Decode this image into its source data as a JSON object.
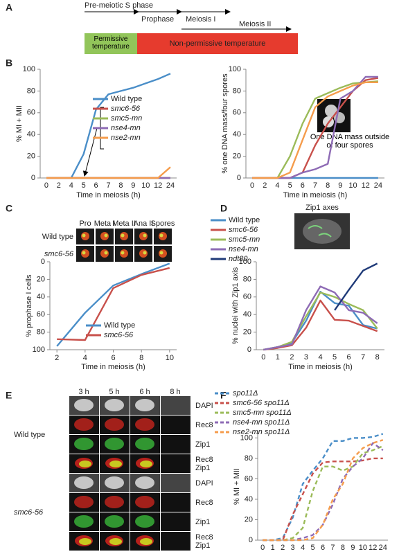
{
  "panel_labels": [
    "A",
    "B",
    "C",
    "D",
    "E",
    "F"
  ],
  "panel_a": {
    "phases": [
      "Pre-meiotic S phase",
      "Prophase",
      "Meiosis I",
      "Meiosis II"
    ],
    "permissive": "Permissive temperature",
    "non_permissive": "Non-permissive temperature"
  },
  "panel_c_images": {
    "columns": [
      "Pro",
      "Meta I",
      "Meta II",
      "Ana II",
      "Spores"
    ],
    "rows": [
      "Wild type",
      "smc6-56"
    ]
  },
  "panel_e": {
    "columns": [
      "3 h",
      "5 h",
      "6 h",
      "8 h"
    ],
    "channels": [
      "DAPI",
      "Rec8",
      "Zip1"
    ],
    "genotypes": [
      "Wild type",
      "smc6-56"
    ]
  },
  "chart_data": [
    {
      "type": "line",
      "x_label": "Time in meiosis (h)",
      "y_label": "% MI + MII",
      "categories": [
        "0",
        "2",
        "4",
        "5",
        "6",
        "7",
        "8",
        "9",
        "10",
        "12",
        "24"
      ],
      "ylim": [
        0,
        100
      ],
      "yticks": [
        0,
        20,
        40,
        60,
        80,
        100
      ],
      "series": [
        {
          "name": "Wild type",
          "color": "#4a8ec8",
          "values": [
            0,
            0,
            0,
            22,
            63,
            77,
            80,
            83,
            87,
            91,
            96
          ]
        },
        {
          "name": "smc6-56",
          "color": "#c8504b",
          "values": [
            0,
            0,
            0,
            0,
            0,
            0,
            0,
            0,
            0,
            0,
            0
          ]
        },
        {
          "name": "smc5-mn",
          "color": "#9bbb59",
          "values": [
            0,
            0,
            0,
            0,
            0,
            0,
            0,
            0,
            0,
            0,
            0
          ]
        },
        {
          "name": "nse4-mn",
          "color": "#8e6bb5",
          "values": [
            0,
            0,
            0,
            0,
            0,
            0,
            0,
            0,
            0,
            0,
            0
          ]
        },
        {
          "name": "nse2-mn",
          "color": "#f59c4c",
          "values": [
            0,
            0,
            0,
            0,
            0,
            0,
            0,
            0,
            0,
            0,
            10
          ]
        }
      ]
    },
    {
      "type": "line",
      "x_label": "Time in meiosis (h)",
      "y_label": "% one DNA mass/four spores",
      "annotation": "One DNA mass outside of four spores",
      "categories": [
        "0",
        "2",
        "4",
        "5",
        "6",
        "7",
        "8",
        "9",
        "10",
        "12",
        "24"
      ],
      "ylim": [
        0,
        100
      ],
      "yticks": [
        0,
        20,
        40,
        60,
        80,
        100
      ],
      "series": [
        {
          "name": "Wild type",
          "color": "#4a8ec8",
          "values": [
            0,
            0,
            0,
            0,
            0,
            0,
            0,
            0,
            0,
            0,
            0
          ]
        },
        {
          "name": "smc6-56",
          "color": "#c8504b",
          "values": [
            0,
            0,
            0,
            0,
            5,
            30,
            50,
            65,
            80,
            90,
            92
          ]
        },
        {
          "name": "smc5-mn",
          "color": "#9bbb59",
          "values": [
            0,
            0,
            0,
            20,
            50,
            73,
            78,
            83,
            87,
            88,
            89
          ]
        },
        {
          "name": "nse4-mn",
          "color": "#8e6bb5",
          "values": [
            0,
            0,
            0,
            0,
            5,
            8,
            13,
            73,
            80,
            93,
            93
          ]
        },
        {
          "name": "nse2-mn",
          "color": "#f59c4c",
          "values": [
            0,
            0,
            0,
            5,
            35,
            65,
            75,
            80,
            85,
            88,
            88
          ]
        }
      ]
    },
    {
      "type": "line",
      "x_label": "Time in meiosis (h)",
      "y_label": "% prophase I cells",
      "x": [
        2,
        4,
        6,
        8,
        10
      ],
      "xlim": [
        1.5,
        10.5
      ],
      "xticks": [
        2,
        4,
        6,
        8,
        10
      ],
      "ylim": [
        100,
        0
      ],
      "yticks": [
        0,
        20,
        40,
        60,
        80,
        100
      ],
      "series": [
        {
          "name": "Wild type",
          "color": "#4a8ec8",
          "values": [
            96,
            58,
            27,
            14,
            2
          ]
        },
        {
          "name": "smc6-56",
          "color": "#c8504b",
          "values": [
            88,
            89,
            30,
            15,
            7
          ]
        }
      ]
    },
    {
      "type": "line",
      "x_label": "Time in meiosis (h)",
      "y_label": "% nuclei with Zip1 axis",
      "inset_label": "Zip1 axes",
      "categories": [
        "0",
        "1",
        "2",
        "3",
        "4",
        "5",
        "6",
        "7",
        "8"
      ],
      "ylim": [
        0,
        100
      ],
      "yticks": [
        0,
        20,
        40,
        60,
        80,
        100
      ],
      "series": [
        {
          "name": "Wild type",
          "color": "#4a8ec8",
          "values": [
            0,
            3,
            8,
            33,
            66,
            53,
            50,
            28,
            24
          ]
        },
        {
          "name": "smc6-56",
          "color": "#c8504b",
          "values": [
            0,
            2,
            5,
            25,
            56,
            34,
            33,
            27,
            21
          ]
        },
        {
          "name": "smc5-mn",
          "color": "#9bbb59",
          "values": [
            0,
            3,
            9,
            38,
            65,
            60,
            52,
            45,
            24
          ]
        },
        {
          "name": "nse4-mn",
          "color": "#8e6bb5",
          "values": [
            0,
            3,
            6,
            45,
            72,
            65,
            45,
            42,
            30
          ]
        },
        {
          "name": "ndt80",
          "color": "#1f3a78",
          "values": [
            null,
            null,
            null,
            null,
            null,
            45,
            68,
            90,
            98
          ]
        }
      ]
    },
    {
      "type": "line",
      "line_style": "dashed",
      "x_label": "Time in meiosis (h)",
      "y_label": "% MI + MII",
      "categories": [
        "0",
        "1",
        "2",
        "3",
        "4",
        "5",
        "6",
        "7",
        "8",
        "9",
        "10",
        "12",
        "24"
      ],
      "ylim": [
        0,
        105
      ],
      "yticks": [
        0,
        20,
        40,
        60,
        80,
        100
      ],
      "series": [
        {
          "name": "spo11Δ",
          "color": "#4a8ec8",
          "values": [
            0,
            0,
            2,
            22,
            55,
            68,
            80,
            97,
            97,
            100,
            100,
            101,
            104
          ]
        },
        {
          "name": "smc6-56 spo11Δ",
          "color": "#c8504b",
          "values": [
            0,
            0,
            0,
            25,
            45,
            65,
            76,
            77,
            77,
            77,
            78,
            80,
            80
          ]
        },
        {
          "name": "smc5-mn spo11Δ",
          "color": "#9bbb59",
          "values": [
            0,
            0,
            0,
            2,
            12,
            48,
            72,
            72,
            68,
            72,
            85,
            88,
            92
          ]
        },
        {
          "name": "nse4-mn spo11Δ",
          "color": "#8e6bb5",
          "values": [
            0,
            0,
            0,
            0,
            2,
            5,
            15,
            35,
            60,
            72,
            80,
            95,
            88
          ]
        },
        {
          "name": "nse2-mn spo11Δ",
          "color": "#f59c4c",
          "values": [
            0,
            0,
            0,
            0,
            0,
            2,
            15,
            40,
            55,
            80,
            90,
            95,
            98
          ]
        }
      ]
    }
  ]
}
